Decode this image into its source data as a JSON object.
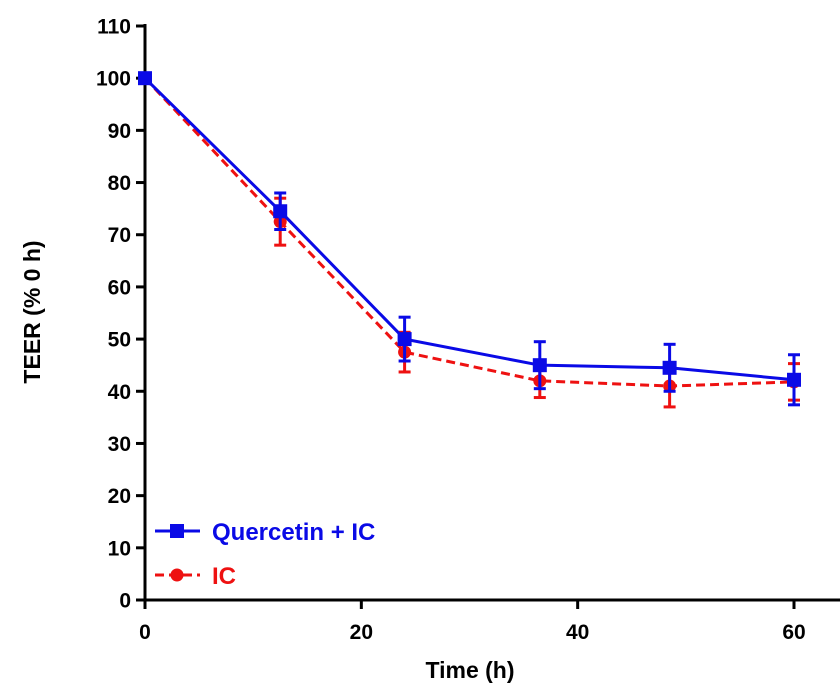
{
  "chart_data": {
    "type": "line",
    "xlabel": "Time (h)",
    "ylabel": "TEER (% 0 h)",
    "xlim": [
      0,
      64
    ],
    "ylim": [
      0,
      110
    ],
    "x_ticks": [
      0,
      20,
      40,
      60
    ],
    "y_ticks": [
      0,
      10,
      20,
      30,
      40,
      50,
      60,
      70,
      80,
      90,
      100,
      110
    ],
    "x_tick_labels": [
      "0",
      "20",
      "40",
      "60"
    ],
    "y_tick_labels": [
      "0",
      "10",
      "20",
      "30",
      "40",
      "50",
      "60",
      "70",
      "80",
      "90",
      "100",
      "110"
    ],
    "grid": false,
    "legend_position": "bottom-left",
    "series": [
      {
        "name": "Quercetin + IC",
        "color": "#0a0ae6",
        "marker": "square",
        "line_style": "solid",
        "x": [
          0,
          12.5,
          24,
          36.5,
          48.5,
          60
        ],
        "y": [
          100,
          74.5,
          50,
          45,
          44.5,
          42.2
        ],
        "error": [
          0,
          3.5,
          4.2,
          4.5,
          4.5,
          4.8
        ]
      },
      {
        "name": "IC",
        "color": "#ee1111",
        "marker": "circle",
        "line_style": "dashed",
        "x": [
          0,
          12.5,
          24,
          36.5,
          48.5,
          60
        ],
        "y": [
          100,
          72.5,
          47.5,
          42,
          41,
          41.8
        ],
        "error": [
          0,
          4.5,
          3.8,
          3.2,
          4.0,
          3.5
        ]
      }
    ]
  }
}
